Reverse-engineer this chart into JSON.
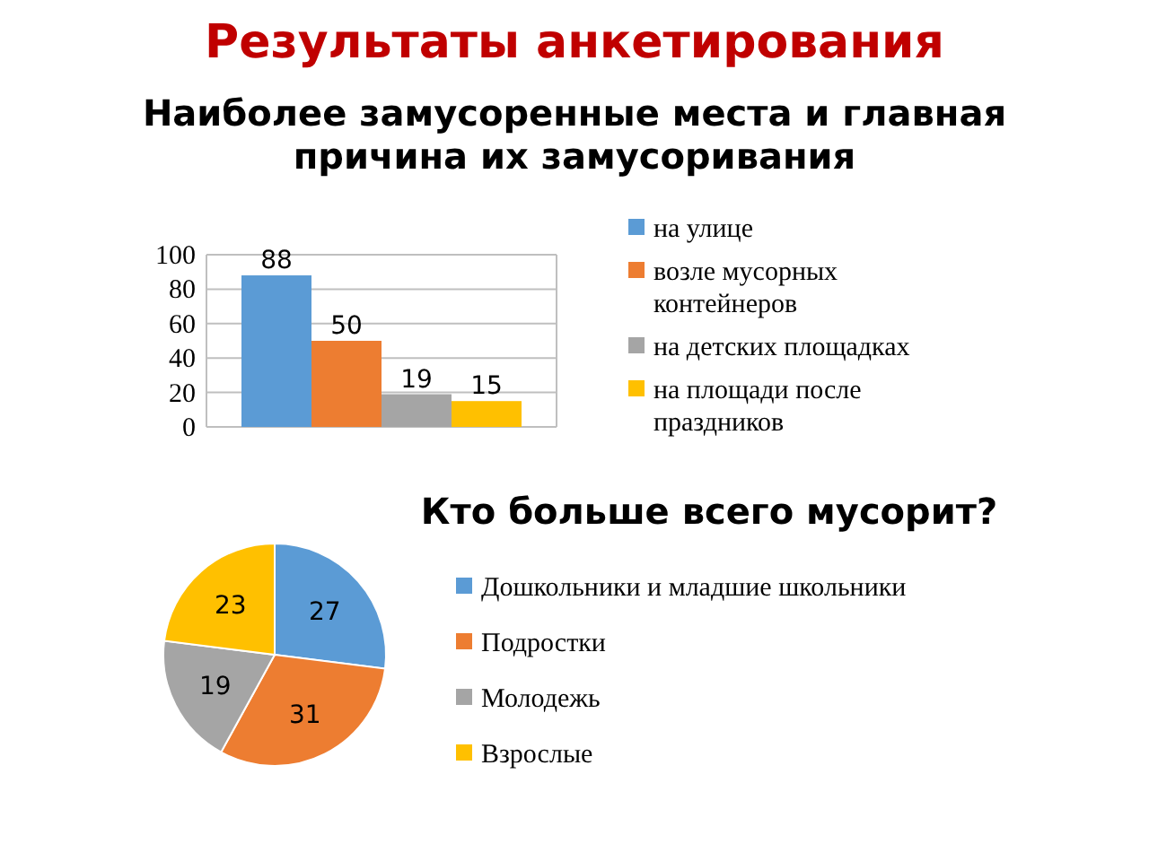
{
  "chart_data": [
    {
      "type": "bar",
      "title": "Результаты анкетирования",
      "subtitle": "Наиболее  замусоренные места и главная причина  их замусоривания",
      "categories": [
        null
      ],
      "series": [
        {
          "name": "на улице",
          "color": "#5b9bd5",
          "values": [
            88
          ]
        },
        {
          "name": "возле мусорных контейнеров",
          "color": "#ed7d31",
          "values": [
            50
          ]
        },
        {
          "name": "на детских площадках",
          "color": "#a5a5a5",
          "values": [
            19
          ]
        },
        {
          "name": "на площади после праздников",
          "color": "#ffc000",
          "values": [
            15
          ]
        }
      ],
      "ylim": [
        0,
        100
      ],
      "yticks": [
        0,
        20,
        40,
        60,
        80,
        100
      ],
      "grid": "y",
      "legend": "right",
      "data_labels": true
    },
    {
      "type": "pie",
      "title": "Кто больше всего мусорит?",
      "categories": [
        "Дошкольники и младшие школьники",
        "Подростки",
        "Молодежь",
        "Взрослые"
      ],
      "values": [
        27,
        31,
        19,
        23
      ],
      "colors": [
        "#5b9bd5",
        "#ed7d31",
        "#a5a5a5",
        "#ffc000"
      ],
      "legend": "right",
      "data_labels": true
    }
  ]
}
